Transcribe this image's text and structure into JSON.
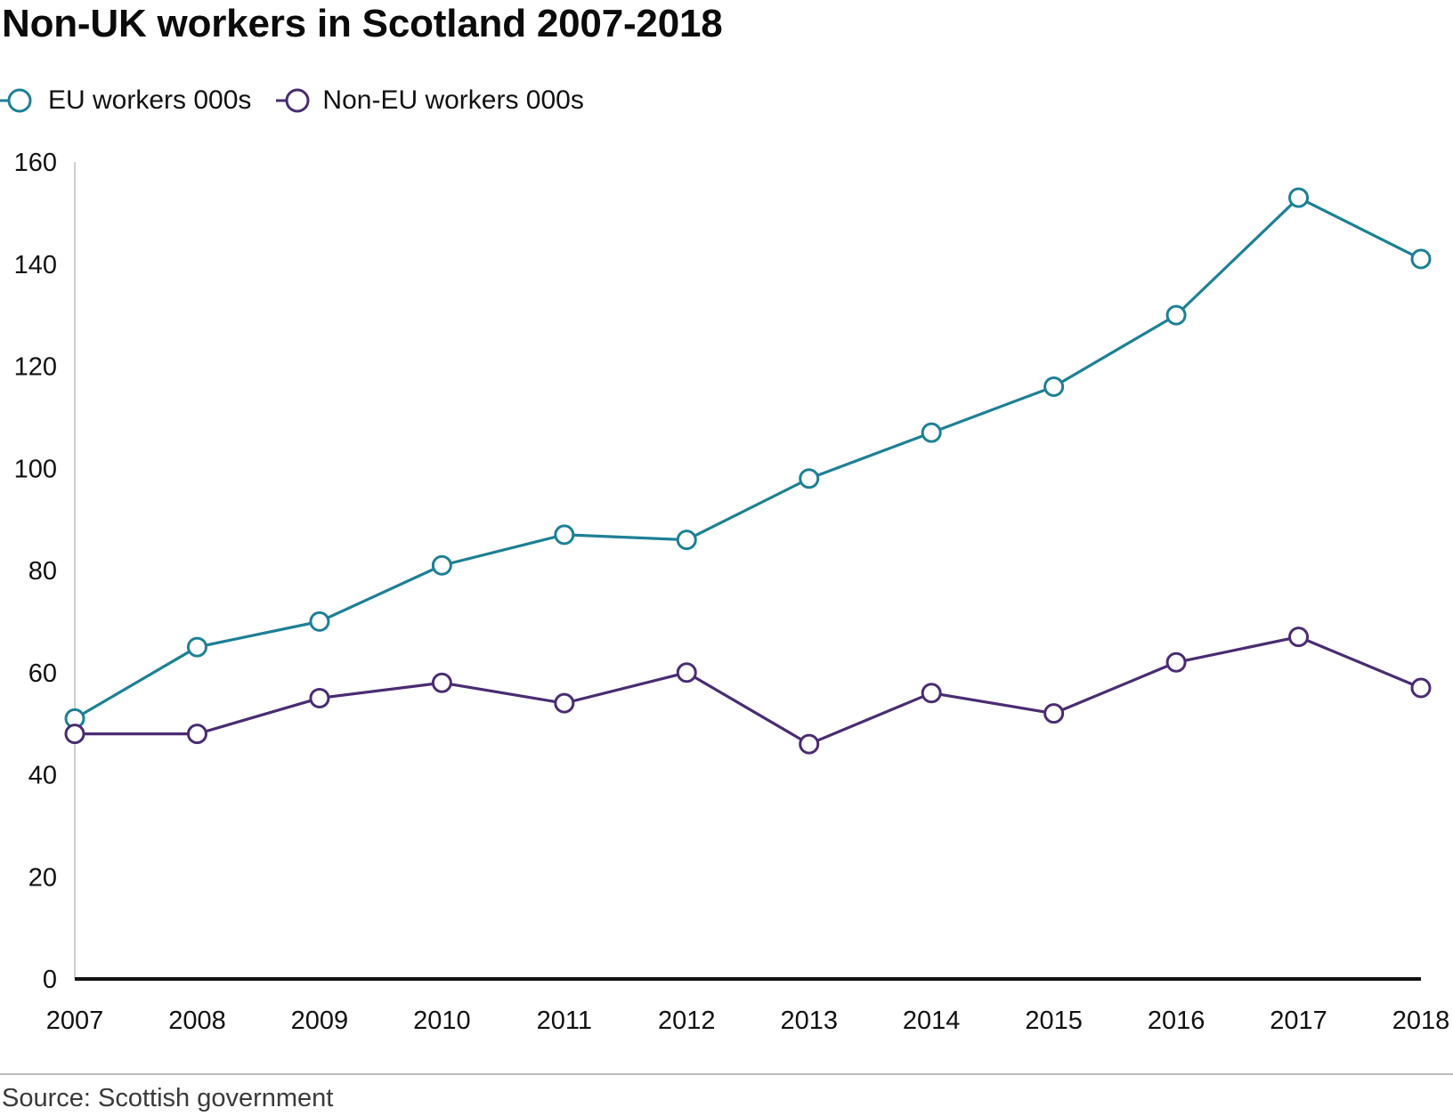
{
  "chart_data": {
    "type": "line",
    "title": "Non-UK workers in Scotland 2007-2018",
    "x": [
      "2007",
      "2008",
      "2009",
      "2010",
      "2011",
      "2012",
      "2013",
      "2014",
      "2015",
      "2016",
      "2017",
      "2018"
    ],
    "series": [
      {
        "name": "EU workers 000s",
        "color": "#1d8096",
        "values": [
          51,
          65,
          70,
          81,
          87,
          86,
          98,
          107,
          116,
          130,
          153,
          141
        ]
      },
      {
        "name": "Non-EU workers 000s",
        "color": "#4a2c72",
        "values": [
          48,
          48,
          55,
          58,
          54,
          60,
          46,
          56,
          52,
          62,
          67,
          57
        ]
      }
    ],
    "yticks": [
      "0",
      "20",
      "40",
      "60",
      "80",
      "100",
      "120",
      "140",
      "160"
    ],
    "ylim": [
      0,
      160
    ],
    "grid": false,
    "legend": "top-left",
    "source": "Source: Scottish government"
  }
}
